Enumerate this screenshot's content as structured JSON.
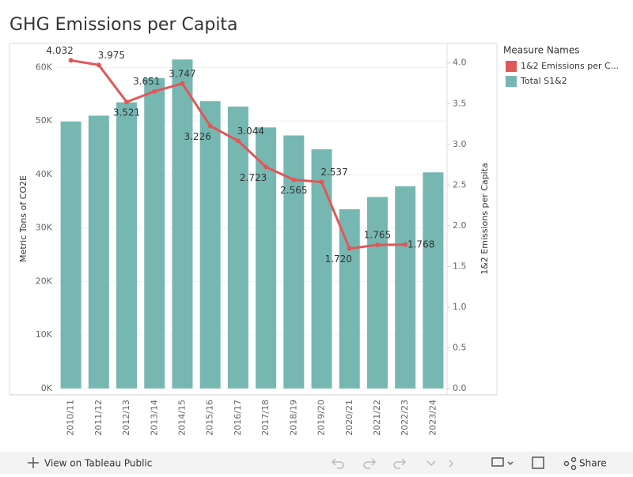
{
  "chart_data": {
    "type": "bar-line",
    "title": "GHG Emissions per Capita",
    "categories": [
      "2010/11",
      "2011/12",
      "2012/13",
      "2013/14",
      "2014/15",
      "2015/16",
      "2016/17",
      "2017/18",
      "2018/19",
      "2019/20",
      "2020/21",
      "2021/22",
      "2022/23",
      "2023/24"
    ],
    "series": [
      {
        "name": "Total S1&2",
        "type": "bar",
        "color": "#76b7b2",
        "values": [
          49900,
          51000,
          53500,
          58000,
          61500,
          53700,
          52700,
          48800,
          47300,
          44700,
          33500,
          35800,
          37800,
          40400
        ]
      },
      {
        "name": "1&2 Emissions per C...",
        "type": "line",
        "axis": "y2",
        "color": "#e15759",
        "values": [
          4.032,
          3.975,
          3.521,
          3.651,
          3.747,
          3.226,
          3.044,
          2.723,
          2.565,
          2.537,
          1.72,
          1.765,
          1.768,
          null
        ],
        "value_labels": [
          "4.032",
          "3.975",
          "3.521",
          "3.651",
          "3.747",
          "3.226",
          "3.044",
          "2.723",
          "2.565",
          "2.537",
          "1.720",
          "1.765",
          "1.768",
          null
        ]
      }
    ],
    "ylabel": "Metric Tons of CO2E",
    "y2label": "1&2 Emissions per Capita",
    "ylim": [
      -1200,
      64500
    ],
    "yticks": [
      {
        "value": 0,
        "label": "0K"
      },
      {
        "value": 10000,
        "label": "10K"
      },
      {
        "value": 20000,
        "label": "20K"
      },
      {
        "value": 30000,
        "label": "30K"
      },
      {
        "value": 40000,
        "label": "40K"
      },
      {
        "value": 50000,
        "label": "50K"
      },
      {
        "value": 60000,
        "label": "60K"
      }
    ],
    "y2lim": [
      -0.078,
      4.24
    ],
    "y2ticks": [
      {
        "value": 0,
        "label": "0.0"
      },
      0.5,
      {
        "value": 1,
        "label": "1.0"
      },
      1.5,
      {
        "value": 2,
        "label": "2.0"
      },
      2.5,
      {
        "value": 3,
        "label": "3.0"
      },
      3.5,
      {
        "value": 4,
        "label": "4.0"
      }
    ],
    "grid": true,
    "legend_title": "Measure Names",
    "legend": "right"
  },
  "toolbar": {
    "view": "View on Tableau Public",
    "share": "Share"
  }
}
